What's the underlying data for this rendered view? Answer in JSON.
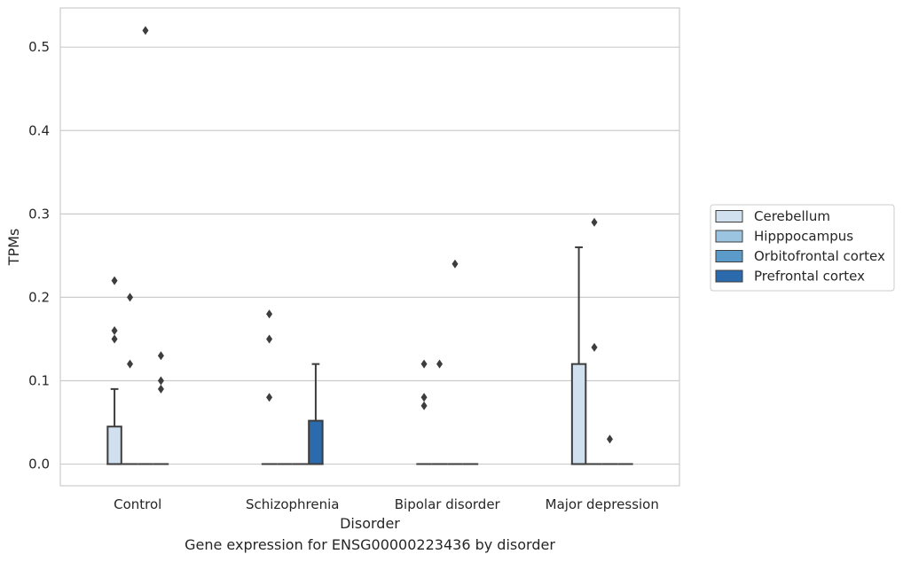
{
  "chart_data": {
    "type": "box",
    "ylabel": "TPMs",
    "xlabel": "Disorder",
    "categories": [
      "Control",
      "Schizophrenia",
      "Bipolar disorder",
      "Major depression"
    ],
    "yticks": [
      "0.0",
      "0.1",
      "0.2",
      "0.3",
      "0.4",
      "0.5"
    ],
    "ylim": [
      -0.026,
      0.547
    ],
    "grid": true,
    "legend_position": "right",
    "series": [
      {
        "name": "Cerebellum",
        "color": "#d0e0ef",
        "boxes": [
          {
            "category": "Control",
            "q1": 0.0,
            "median": 0.0,
            "q3": 0.045,
            "whisker_low": 0.0,
            "whisker_high": 0.09,
            "outliers": [
              0.22,
              0.16,
              0.15
            ]
          },
          {
            "category": "Schizophrenia",
            "q1": 0.0,
            "median": 0.0,
            "q3": 0.0,
            "whisker_low": 0.0,
            "whisker_high": 0.0,
            "outliers": [
              0.18,
              0.15,
              0.08
            ]
          },
          {
            "category": "Bipolar disorder",
            "q1": 0.0,
            "median": 0.0,
            "q3": 0.0,
            "whisker_low": 0.0,
            "whisker_high": 0.0,
            "outliers": [
              0.12,
              0.08,
              0.07
            ]
          },
          {
            "category": "Major depression",
            "q1": 0.0,
            "median": 0.0,
            "q3": 0.12,
            "whisker_low": 0.0,
            "whisker_high": 0.26,
            "outliers": []
          }
        ]
      },
      {
        "name": "Hipppocampus",
        "color": "#9ac4e0",
        "boxes": [
          {
            "category": "Control",
            "q1": 0.0,
            "median": 0.0,
            "q3": 0.0,
            "whisker_low": 0.0,
            "whisker_high": 0.0,
            "outliers": [
              0.2,
              0.12
            ]
          },
          {
            "category": "Schizophrenia",
            "q1": 0.0,
            "median": 0.0,
            "q3": 0.0,
            "whisker_low": 0.0,
            "whisker_high": 0.0,
            "outliers": []
          },
          {
            "category": "Bipolar disorder",
            "q1": 0.0,
            "median": 0.0,
            "q3": 0.0,
            "whisker_low": 0.0,
            "whisker_high": 0.0,
            "outliers": [
              0.12
            ]
          },
          {
            "category": "Major depression",
            "q1": 0.0,
            "median": 0.0,
            "q3": 0.0,
            "whisker_low": 0.0,
            "whisker_high": 0.0,
            "outliers": [
              0.29,
              0.14
            ]
          }
        ]
      },
      {
        "name": "Orbitofrontal cortex",
        "color": "#5a9bc9",
        "boxes": [
          {
            "category": "Control",
            "q1": 0.0,
            "median": 0.0,
            "q3": 0.0,
            "whisker_low": 0.0,
            "whisker_high": 0.0,
            "outliers": [
              0.52
            ]
          },
          {
            "category": "Schizophrenia",
            "q1": 0.0,
            "median": 0.0,
            "q3": 0.0,
            "whisker_low": 0.0,
            "whisker_high": 0.0,
            "outliers": []
          },
          {
            "category": "Bipolar disorder",
            "q1": 0.0,
            "median": 0.0,
            "q3": 0.0,
            "whisker_low": 0.0,
            "whisker_high": 0.0,
            "outliers": [
              0.24
            ]
          },
          {
            "category": "Major depression",
            "q1": 0.0,
            "median": 0.0,
            "q3": 0.0,
            "whisker_low": 0.0,
            "whisker_high": 0.0,
            "outliers": [
              0.03
            ]
          }
        ]
      },
      {
        "name": "Prefrontal cortex",
        "color": "#2a6aad",
        "boxes": [
          {
            "category": "Control",
            "q1": 0.0,
            "median": 0.0,
            "q3": 0.0,
            "whisker_low": 0.0,
            "whisker_high": 0.0,
            "outliers": [
              0.13,
              0.1,
              0.09
            ]
          },
          {
            "category": "Schizophrenia",
            "q1": 0.0,
            "median": 0.0,
            "q3": 0.052,
            "whisker_low": 0.0,
            "whisker_high": 0.12,
            "outliers": []
          },
          {
            "category": "Bipolar disorder",
            "q1": 0.0,
            "median": 0.0,
            "q3": 0.0,
            "whisker_low": 0.0,
            "whisker_high": 0.0,
            "outliers": []
          },
          {
            "category": "Major depression",
            "q1": 0.0,
            "median": 0.0,
            "q3": 0.0,
            "whisker_low": 0.0,
            "whisker_high": 0.0,
            "outliers": []
          }
        ]
      }
    ]
  },
  "caption": "Gene expression for ENSG00000223436 by disorder"
}
